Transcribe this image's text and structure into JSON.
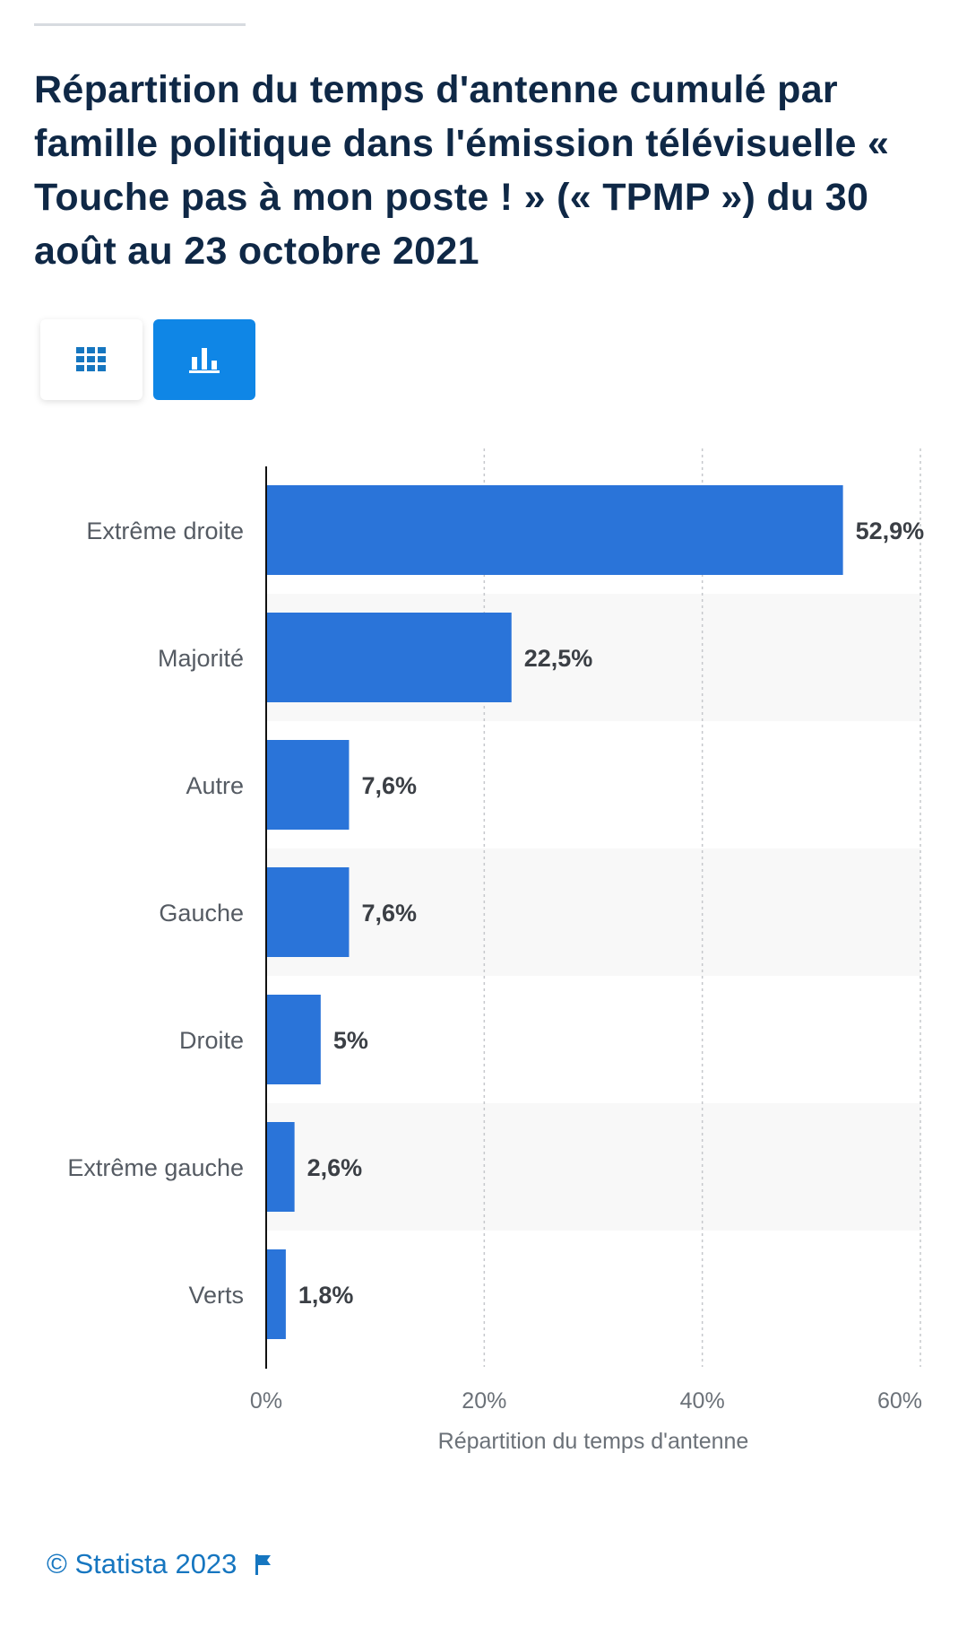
{
  "title": "Répartition du temps d'antenne cumulé par famille politique dans l'émission télévisuelle « Touche pas à mon poste ! » (« TPMP ») du 30 août au 23 octobre 2021",
  "view_toggle": {
    "table_icon": "table-grid-icon",
    "chart_icon": "bar-chart-icon",
    "selected": "chart"
  },
  "colors": {
    "bar": "#2a74d9",
    "title": "#0f2846",
    "toggle_active": "#0f86e6",
    "credit": "#1676c0"
  },
  "chart_data": {
    "type": "bar",
    "orientation": "horizontal",
    "categories": [
      "Extrême droite",
      "Majorité",
      "Autre",
      "Gauche",
      "Droite",
      "Extrême gauche",
      "Verts"
    ],
    "values": [
      52.9,
      22.5,
      7.6,
      7.6,
      5,
      2.6,
      1.8
    ],
    "value_labels": [
      "52,9%",
      "22,5%",
      "7,6%",
      "7,6%",
      "5%",
      "2,6%",
      "1,8%"
    ],
    "xlabel": "Répartition du temps d'antenne",
    "xlim": [
      0,
      60
    ],
    "x_ticks": [
      0,
      20,
      40,
      60
    ],
    "x_tick_labels": [
      "0%",
      "20%",
      "40%",
      "60%"
    ],
    "grid": "vertical dotted",
    "alternating_row_shading": true
  },
  "footer": {
    "credit": "© Statista 2023",
    "flag_icon": "flag-icon"
  }
}
